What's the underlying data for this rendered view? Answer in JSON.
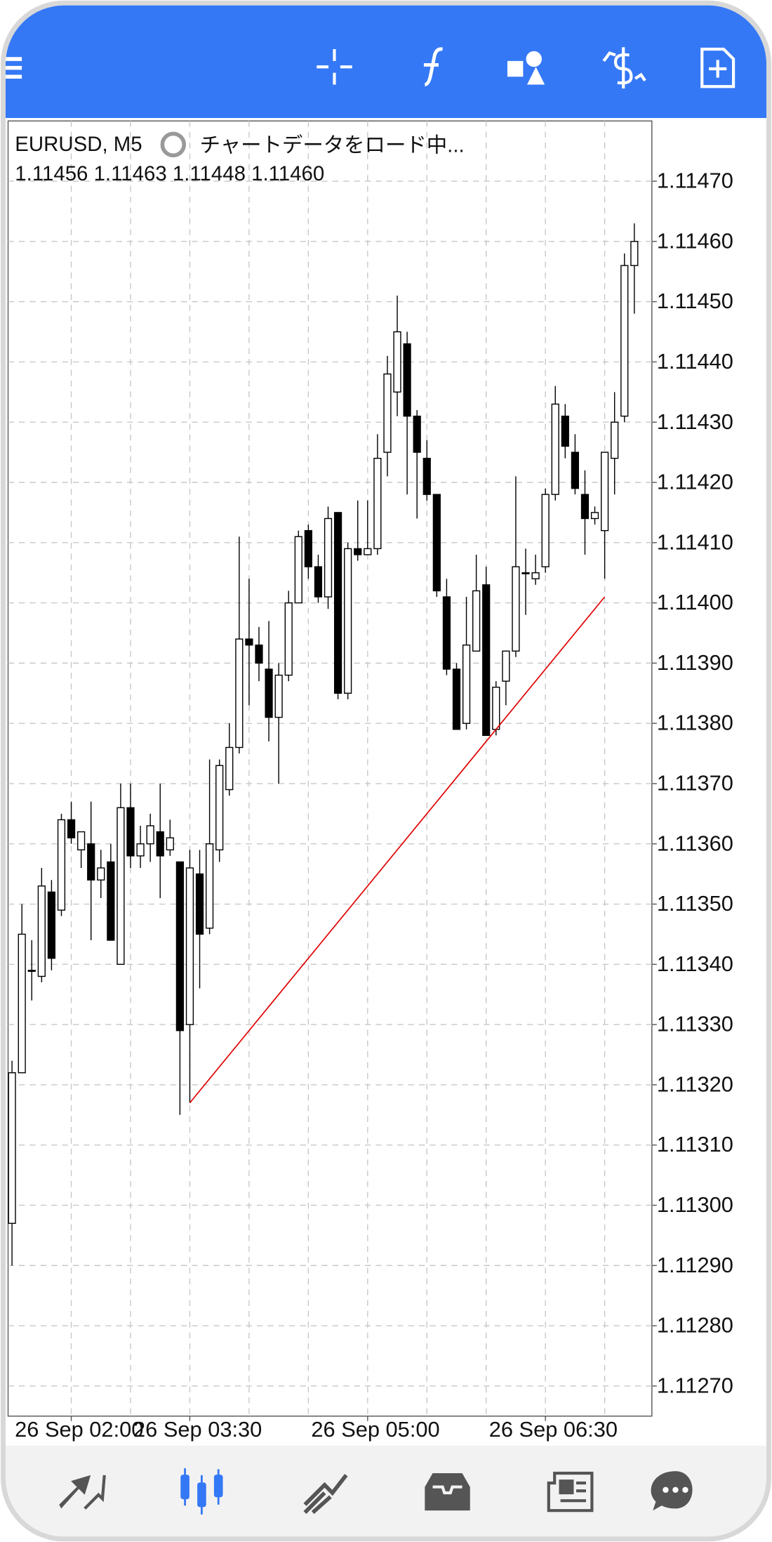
{
  "chart_data": {
    "type": "candlestick",
    "title": "EURUSD, M5",
    "status": "チャートデータをロード中...",
    "ohlc_label": "1.11456 1.11463 1.11448 1.11460",
    "categories": [
      null,
      null,
      null,
      null,
      null,
      null,
      "26 Sep 02:00",
      null,
      null,
      null,
      null,
      null,
      null,
      null,
      null,
      null,
      null,
      null,
      "26 Sep 03:30",
      null,
      null,
      null,
      null,
      null,
      null,
      null,
      null,
      null,
      null,
      null,
      null,
      null,
      null,
      null,
      null,
      null,
      "26 Sep 05:00",
      null,
      null,
      null,
      null,
      null,
      null,
      null,
      null,
      null,
      null,
      null,
      null,
      null,
      null,
      null,
      null,
      null,
      "26 Sep 06:30",
      null,
      null,
      null,
      null,
      null,
      null,
      null,
      null,
      null
    ],
    "open": [
      1.11297,
      1.11322,
      1.11339,
      1.11338,
      1.11352,
      1.11349,
      1.11364,
      1.11359,
      1.1136,
      1.11354,
      1.11357,
      1.1134,
      1.11366,
      1.11358,
      1.1136,
      1.11362,
      1.11359,
      1.11357,
      1.1133,
      1.11355,
      1.11346,
      1.11359,
      1.11369,
      1.11376,
      1.11394,
      1.11393,
      1.11389,
      1.11381,
      1.11388,
      1.114,
      1.11412,
      1.11406,
      1.11401,
      1.11415,
      1.11385,
      1.11409,
      1.11408,
      1.11409,
      1.11425,
      1.11435,
      1.11443,
      1.11431,
      1.11424,
      1.11418,
      1.11401,
      1.11389,
      1.1138,
      1.11392,
      1.11403,
      1.11379,
      1.11387,
      1.11392,
      1.11405,
      1.11404,
      1.11406,
      1.11418,
      1.11431,
      1.11425,
      1.11418,
      1.11414,
      1.11412,
      1.11424,
      1.11431,
      1.11456
    ],
    "high": [
      1.11324,
      1.1135,
      1.11344,
      1.11356,
      1.11354,
      1.11365,
      1.11367,
      1.11362,
      1.11367,
      1.11359,
      1.1136,
      1.1137,
      1.1137,
      1.11363,
      1.11365,
      1.1137,
      1.11364,
      1.11357,
      1.11359,
      1.11359,
      1.11374,
      1.11374,
      1.1138,
      1.11411,
      1.11404,
      1.11396,
      1.11397,
      1.1139,
      1.11402,
      1.11412,
      1.11413,
      1.11408,
      1.11416,
      1.11415,
      1.1141,
      1.11417,
      1.11417,
      1.11428,
      1.11441,
      1.11451,
      1.11445,
      1.11432,
      1.11427,
      1.11418,
      1.11404,
      1.1139,
      1.11401,
      1.11408,
      1.11406,
      1.11387,
      1.11392,
      1.11421,
      1.11409,
      1.11408,
      1.11419,
      1.11436,
      1.11433,
      1.11428,
      1.11422,
      1.11416,
      1.11425,
      1.11435,
      1.11458,
      1.11463
    ],
    "low": [
      1.1129,
      1.11322,
      1.11334,
      1.11337,
      1.11339,
      1.11348,
      1.1136,
      1.11356,
      1.11344,
      1.11351,
      1.11344,
      1.1134,
      1.11356,
      1.11356,
      1.11357,
      1.11351,
      1.11358,
      1.11315,
      1.11317,
      1.11336,
      1.11345,
      1.11357,
      1.11368,
      1.11375,
      1.11383,
      1.11387,
      1.11377,
      1.1137,
      1.11387,
      1.114,
      1.11404,
      1.114,
      1.11399,
      1.11384,
      1.11384,
      1.11407,
      1.11408,
      1.11408,
      1.11421,
      1.11431,
      1.11418,
      1.11414,
      1.11417,
      1.11401,
      1.11388,
      1.11379,
      1.11379,
      1.11392,
      1.11378,
      1.11378,
      1.11383,
      1.11391,
      1.11398,
      1.11403,
      1.11405,
      1.11417,
      1.11424,
      1.11418,
      1.11408,
      1.11413,
      1.11404,
      1.11418,
      1.1143,
      1.11448
    ],
    "close": [
      1.11322,
      1.11345,
      1.11339,
      1.11353,
      1.11341,
      1.11364,
      1.11361,
      1.11362,
      1.11354,
      1.11356,
      1.11344,
      1.11366,
      1.11358,
      1.1136,
      1.11363,
      1.11358,
      1.11361,
      1.11329,
      1.11356,
      1.11345,
      1.1136,
      1.11373,
      1.11376,
      1.11394,
      1.11393,
      1.1139,
      1.11381,
      1.11388,
      1.114,
      1.11411,
      1.11406,
      1.11401,
      1.11414,
      1.11385,
      1.11409,
      1.11408,
      1.11409,
      1.11424,
      1.11438,
      1.11445,
      1.11431,
      1.11425,
      1.11418,
      1.11402,
      1.11389,
      1.11379,
      1.11393,
      1.11402,
      1.11378,
      1.11386,
      1.11392,
      1.11406,
      1.11405,
      1.11405,
      1.11418,
      1.11433,
      1.11426,
      1.11419,
      1.11414,
      1.11415,
      1.11425,
      1.1143,
      1.11456,
      1.1146
    ],
    "ylim": [
      1.11265,
      1.1148
    ],
    "yticks": [
      {
        "value": 1.1147,
        "label": "1.11470"
      },
      {
        "value": 1.1146,
        "label": "1.11460"
      },
      {
        "value": 1.1145,
        "label": "1.11450"
      },
      {
        "value": 1.1144,
        "label": "1.11440"
      },
      {
        "value": 1.1143,
        "label": "1.11430"
      },
      {
        "value": 1.1142,
        "label": "1.11420"
      },
      {
        "value": 1.1141,
        "label": "1.11410"
      },
      {
        "value": 1.114,
        "label": "1.11400"
      },
      {
        "value": 1.1139,
        "label": "1.11390"
      },
      {
        "value": 1.1138,
        "label": "1.11380"
      },
      {
        "value": 1.1137,
        "label": "1.11370"
      },
      {
        "value": 1.1136,
        "label": "1.11360"
      },
      {
        "value": 1.1135,
        "label": "1.11350"
      },
      {
        "value": 1.1134,
        "label": "1.11340"
      },
      {
        "value": 1.1133,
        "label": "1.11330"
      },
      {
        "value": 1.1132,
        "label": "1.11320"
      },
      {
        "value": 1.1131,
        "label": "1.11310"
      },
      {
        "value": 1.113,
        "label": "1.11300"
      },
      {
        "value": 1.1129,
        "label": "1.11290"
      },
      {
        "value": 1.1128,
        "label": "1.11280"
      },
      {
        "value": 1.1127,
        "label": "1.11270"
      }
    ],
    "grid": true,
    "up_color": "#ffffff",
    "down_color": "#000000",
    "trendline": {
      "color": "#e00000",
      "x": [
        18,
        60
      ],
      "values": [
        1.11317,
        1.11401
      ]
    }
  }
}
